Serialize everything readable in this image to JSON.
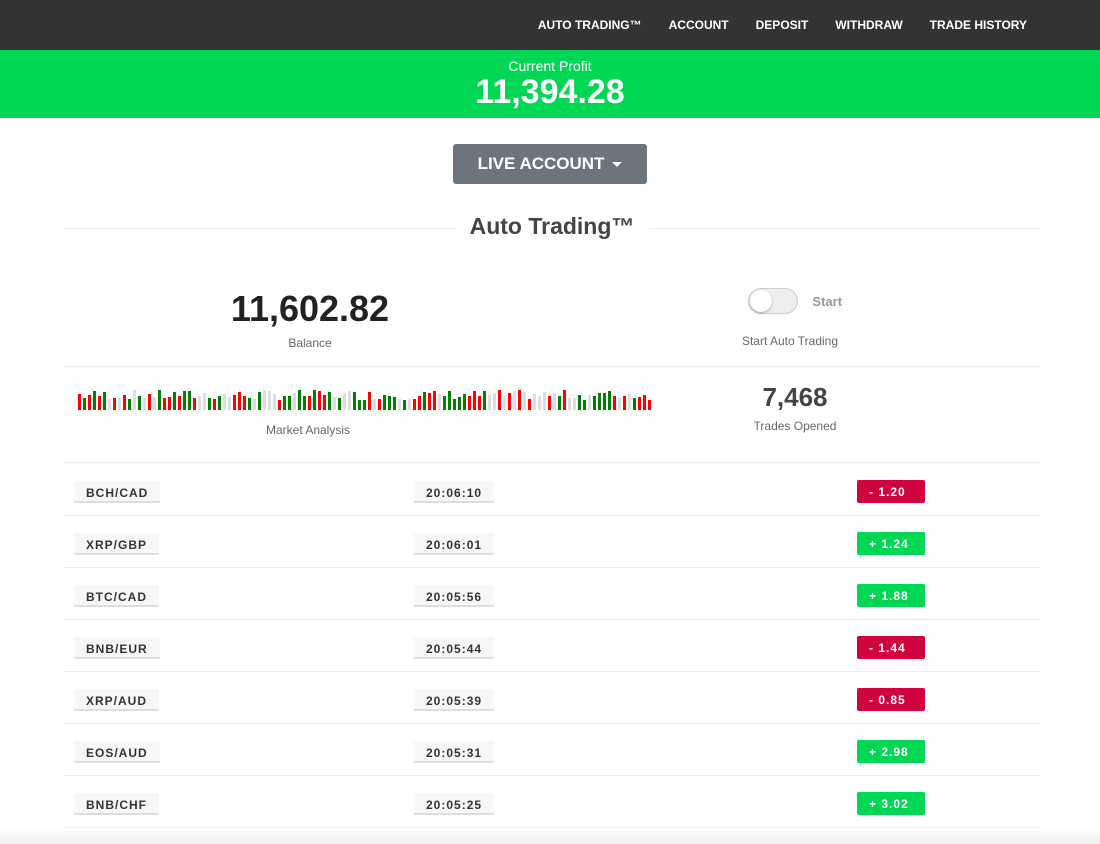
{
  "nav": [
    "AUTO TRADING™",
    "ACCOUNT",
    "DEPOSIT",
    "WITHDRAW",
    "TRADE HISTORY"
  ],
  "profit": {
    "label": "Current Profit",
    "value": "11,394.28"
  },
  "account_button": "LIVE ACCOUNT",
  "section_title": "Auto Trading™",
  "balance": {
    "value": "11,602.82",
    "label": "Balance"
  },
  "toggle": {
    "label": "Start",
    "caption": "Start Auto Trading",
    "on": false
  },
  "market": {
    "label": "Market Analysis"
  },
  "trades": {
    "value": "7,468",
    "label": "Trades Opened"
  },
  "colors": {
    "up": "#00d755",
    "down": "#d0033d",
    "bar_up": "#008000",
    "bar_down": "#ff0000",
    "bar_neutral": "#dddddd"
  },
  "rows": [
    {
      "pair": "BCH/CAD",
      "time": "20:06:10",
      "change": "- 1.20",
      "dir": "down"
    },
    {
      "pair": "XRP/GBP",
      "time": "20:06:01",
      "change": "+ 1.24",
      "dir": "up"
    },
    {
      "pair": "BTC/CAD",
      "time": "20:05:56",
      "change": "+ 1.88",
      "dir": "up"
    },
    {
      "pair": "BNB/EUR",
      "time": "20:05:44",
      "change": "- 1.44",
      "dir": "down"
    },
    {
      "pair": "XRP/AUD",
      "time": "20:05:39",
      "change": "- 0.85",
      "dir": "down"
    },
    {
      "pair": "EOS/AUD",
      "time": "20:05:31",
      "change": "+ 2.98",
      "dir": "up"
    },
    {
      "pair": "BNB/CHF",
      "time": "20:05:25",
      "change": "+ 3.02",
      "dir": "up"
    }
  ]
}
